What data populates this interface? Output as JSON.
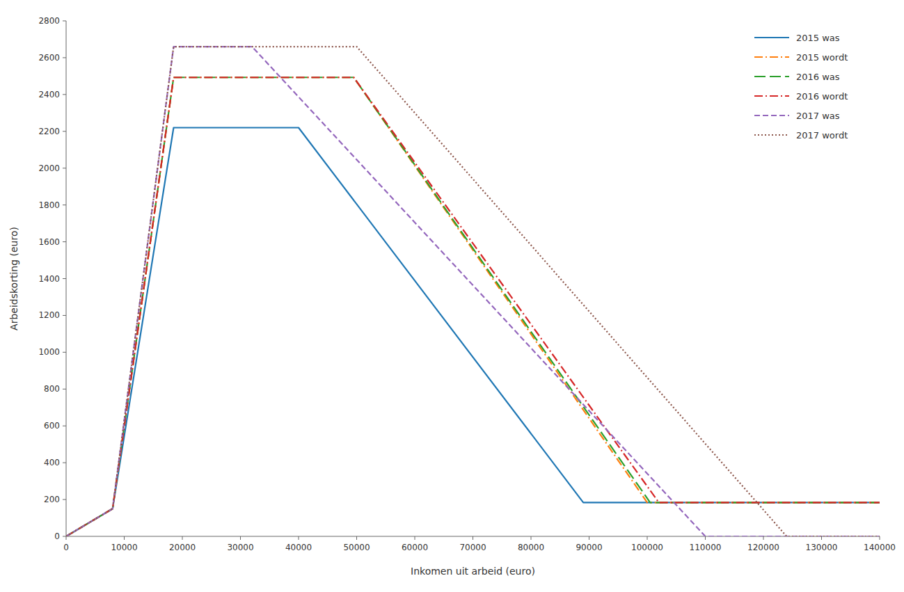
{
  "chart_data": {
    "type": "line",
    "xlabel": "Inkomen uit arbeid (euro)",
    "ylabel": "Arbeidskorting (euro)",
    "xlim": [
      0,
      140000
    ],
    "ylim": [
      0,
      2800
    ],
    "xticks": [
      0,
      10000,
      20000,
      30000,
      40000,
      50000,
      60000,
      70000,
      80000,
      90000,
      100000,
      110000,
      120000,
      130000,
      140000
    ],
    "yticks": [
      0,
      200,
      400,
      600,
      800,
      1000,
      1200,
      1400,
      1600,
      1800,
      2000,
      2200,
      2400,
      2600,
      2800
    ],
    "grid": false,
    "legend": "upper right",
    "series": [
      {
        "name": "2015 was",
        "line_style": "solid",
        "x": [
          0,
          8000,
          18500,
          40000,
          89000,
          89001,
          140000
        ],
        "values": [
          0,
          150,
          2220,
          2220,
          184,
          184,
          184
        ]
      },
      {
        "name": "2015 wordt",
        "line_style": "dashdot",
        "x": [
          0,
          8000,
          18500,
          40000,
          49500,
          100000,
          100001,
          140000
        ],
        "values": [
          0,
          150,
          2493,
          2493,
          2493,
          184,
          184,
          184
        ]
      },
      {
        "name": "2016 was",
        "line_style": "longdash",
        "x": [
          0,
          8000,
          18500,
          40000,
          49500,
          100500,
          100501,
          140000
        ],
        "values": [
          0,
          150,
          2493,
          2493,
          2493,
          184,
          184,
          184
        ]
      },
      {
        "name": "2016 wordt",
        "line_style": "dashdot",
        "x": [
          0,
          8000,
          18500,
          40000,
          49500,
          102000,
          102001,
          140000
        ],
        "values": [
          0,
          150,
          2493,
          2493,
          2493,
          184,
          184,
          184
        ]
      },
      {
        "name": "2017 was",
        "line_style": "dashed",
        "x": [
          0,
          8000,
          18500,
          32000,
          110000,
          110001,
          140000
        ],
        "values": [
          0,
          150,
          2660,
          2660,
          0,
          0,
          0
        ]
      },
      {
        "name": "2017 wordt",
        "line_style": "dotted",
        "x": [
          0,
          8000,
          18500,
          32000,
          50000,
          124000,
          124001,
          140000
        ],
        "values": [
          0,
          150,
          2660,
          2660,
          2660,
          0,
          0,
          0
        ]
      }
    ]
  }
}
